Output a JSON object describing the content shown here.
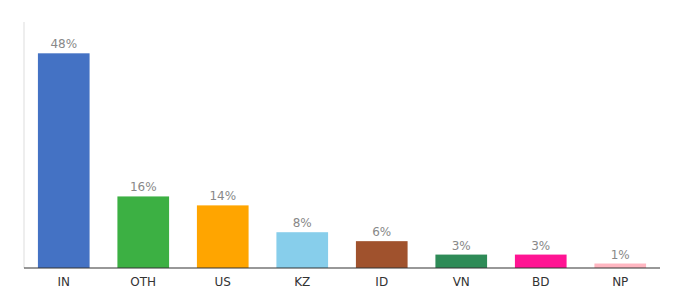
{
  "chart_data": {
    "type": "bar",
    "categories": [
      "IN",
      "OTH",
      "US",
      "KZ",
      "ID",
      "VN",
      "BD",
      "NP"
    ],
    "values": [
      48,
      16,
      14,
      8,
      6,
      3,
      3,
      1
    ],
    "value_labels": [
      "48%",
      "16%",
      "14%",
      "8%",
      "6%",
      "3%",
      "3%",
      "1%"
    ],
    "colors": [
      "#4472C4",
      "#3CB043",
      "#FFA500",
      "#87CEEB",
      "#A0522D",
      "#2E8B57",
      "#FF1493",
      "#FFB6C1"
    ],
    "ylim": [
      0,
      55
    ],
    "data_labels": true,
    "tick_labels": "x"
  }
}
